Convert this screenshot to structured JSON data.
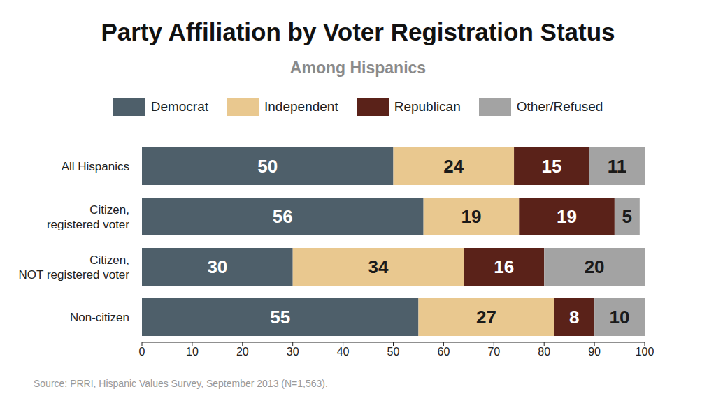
{
  "chart_data": {
    "type": "bar",
    "title": "Party Affiliation by Voter Registration Status",
    "subtitle": "Among Hispanics",
    "categories": [
      "All Hispanics",
      "Citizen, registered voter",
      "Citizen, NOT registered voter",
      "Non-citizen"
    ],
    "series": [
      {
        "name": "Democrat",
        "color": "#4e5f6a",
        "values": [
          50,
          56,
          30,
          55
        ]
      },
      {
        "name": "Independent",
        "color": "#e9c88f",
        "values": [
          24,
          19,
          34,
          27
        ]
      },
      {
        "name": "Republican",
        "color": "#5a2219",
        "values": [
          15,
          19,
          16,
          8
        ]
      },
      {
        "name": "Other/Refused",
        "color": "#a3a3a3",
        "values": [
          11,
          5,
          20,
          10
        ]
      }
    ],
    "xlim": [
      0,
      100
    ],
    "xticks": [
      0,
      10,
      20,
      30,
      40,
      50,
      60,
      70,
      80,
      90,
      100
    ],
    "orientation": "horizontal",
    "stacked": true,
    "data_labels": true,
    "legend": "top",
    "grid": false,
    "annotations": [
      "Source: PRRI, Hispanic Values Survey, September 2013 (N=1,563)."
    ]
  }
}
